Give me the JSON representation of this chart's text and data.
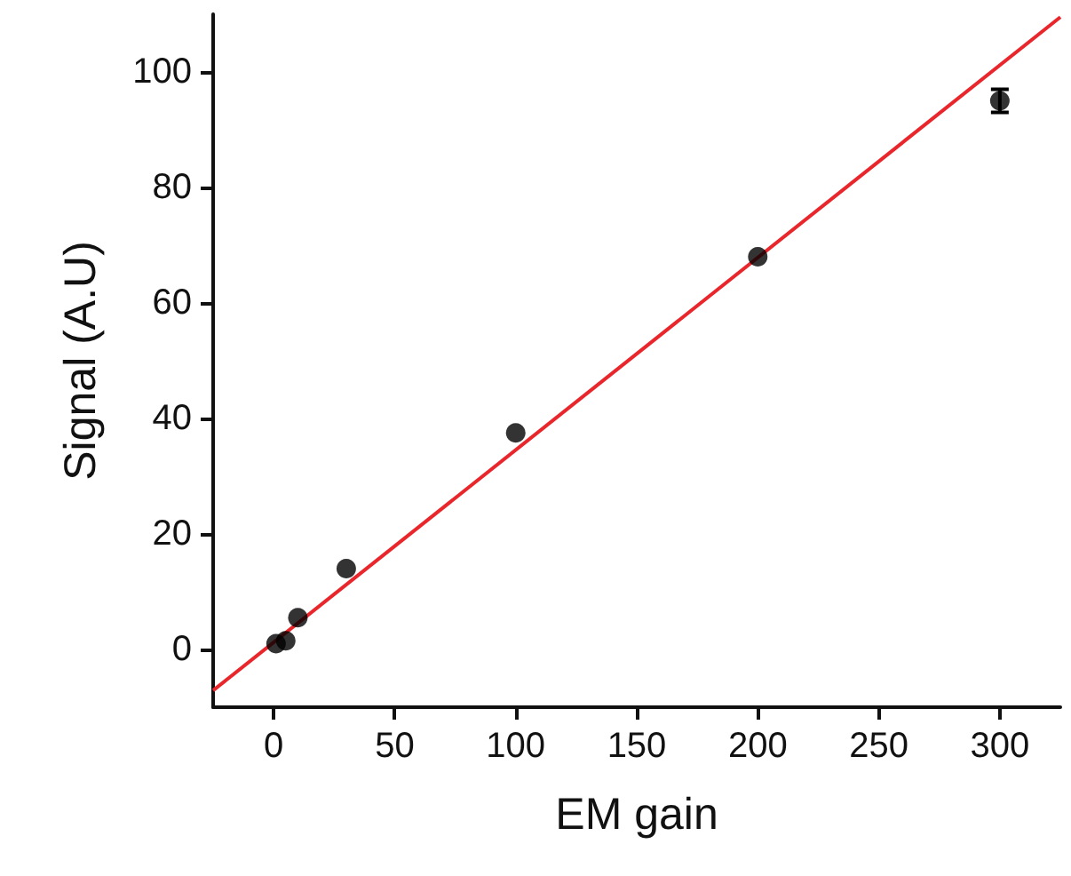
{
  "chart_data": {
    "type": "scatter",
    "xlabel": "EM gain",
    "ylabel": "Signal (A.U)",
    "x": [
      1,
      5,
      10,
      30,
      100,
      200,
      300
    ],
    "series": [
      {
        "color": "#000000",
        "marker": "circle",
        "values": [
          1,
          1.5,
          5.5,
          14,
          37.5,
          68,
          95
        ],
        "errors": [
          null,
          null,
          null,
          null,
          null,
          null,
          2
        ]
      },
      {
        "type": "line",
        "marker": "none",
        "color": "#e8262b",
        "x": [
          -25,
          325
        ],
        "values": [
          -7.1,
          109.5
        ]
      }
    ],
    "xlim": [
      -25,
      325
    ],
    "xticks": [
      0,
      50,
      100,
      150,
      200,
      250,
      300
    ],
    "ylim": [
      -10,
      110
    ],
    "yticks": [
      0,
      20,
      40,
      60,
      80,
      100
    ],
    "grid": false
  }
}
